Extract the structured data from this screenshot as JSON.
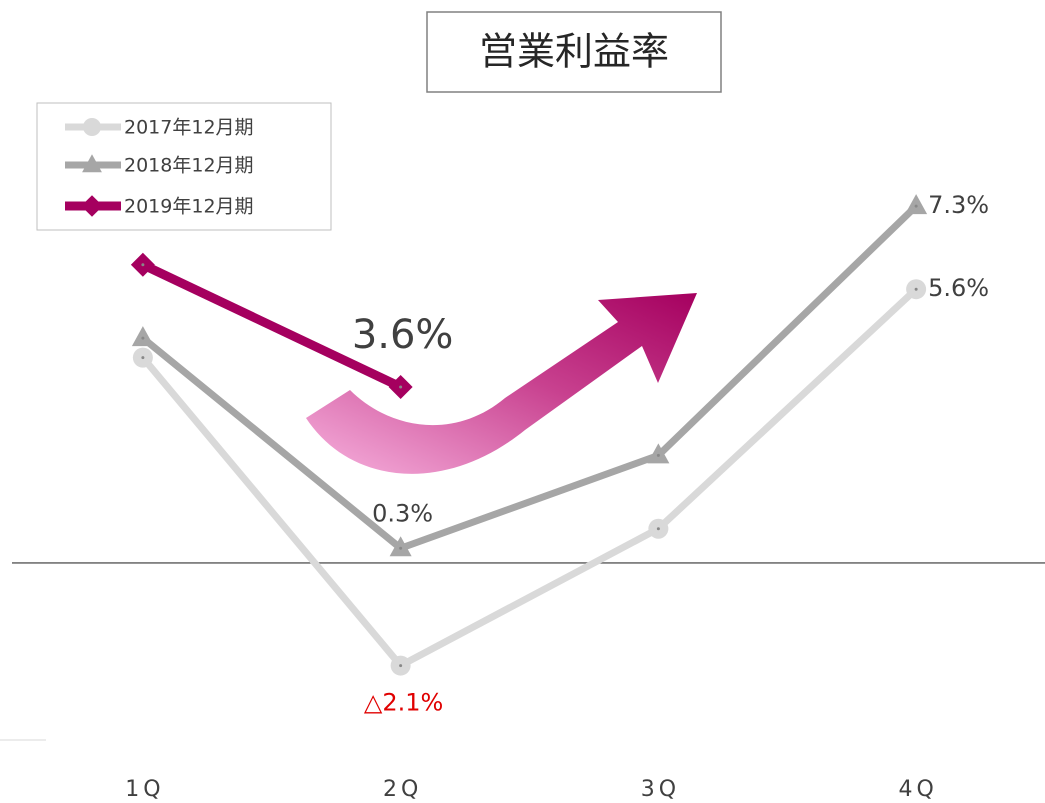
{
  "chart_data": {
    "type": "line",
    "title": "営業利益率",
    "categories": [
      "1Q",
      "2Q",
      "3Q",
      "4Q"
    ],
    "ylim": [
      -3.5,
      9
    ],
    "series": [
      {
        "name": "2017年12月期",
        "color": "#d9d9d9",
        "marker": "circle",
        "values": [
          4.2,
          -2.1,
          0.7,
          5.6
        ],
        "value_labels": [
          null,
          "△2.1%",
          null,
          "5.6%"
        ]
      },
      {
        "name": "2018年12月期",
        "color": "#a6a6a6",
        "marker": "triangle",
        "values": [
          4.6,
          0.3,
          2.2,
          7.3
        ],
        "value_labels": [
          null,
          "0.3%",
          null,
          "7.3%"
        ]
      },
      {
        "name": "2019年12月期",
        "color": "#a5005f",
        "marker": "diamond",
        "values": [
          6.1,
          3.6,
          null,
          null
        ],
        "value_labels": [
          null,
          "3.6%",
          null,
          null
        ]
      }
    ],
    "legend": "top-left"
  }
}
